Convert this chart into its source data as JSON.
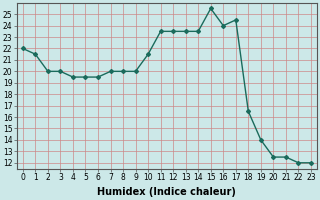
{
  "x": [
    0,
    1,
    2,
    3,
    4,
    5,
    6,
    7,
    8,
    9,
    10,
    11,
    12,
    13,
    14,
    15,
    16,
    17,
    18,
    19,
    20,
    21,
    22,
    23
  ],
  "y": [
    22,
    21.5,
    20,
    20,
    19.5,
    19.5,
    19.5,
    20,
    20,
    20,
    21.5,
    23.5,
    23.5,
    23.5,
    23.5,
    25.5,
    24,
    24.5,
    16.5,
    14,
    12.5,
    12.5,
    12,
    12
  ],
  "line_color": "#1a6b5c",
  "bg_color": "#cce8e8",
  "grid_color": "#cc8888",
  "xlabel": "Humidex (Indice chaleur)",
  "ylim": [
    11.5,
    26.0
  ],
  "xlim": [
    -0.5,
    23.5
  ],
  "yticks": [
    12,
    13,
    14,
    15,
    16,
    17,
    18,
    19,
    20,
    21,
    22,
    23,
    24,
    25
  ],
  "xticks": [
    0,
    1,
    2,
    3,
    4,
    5,
    6,
    7,
    8,
    9,
    10,
    11,
    12,
    13,
    14,
    15,
    16,
    17,
    18,
    19,
    20,
    21,
    22,
    23
  ],
  "marker": "D",
  "markersize": 2.0,
  "linewidth": 1.0,
  "xlabel_fontsize": 7,
  "tick_fontsize": 5.5
}
